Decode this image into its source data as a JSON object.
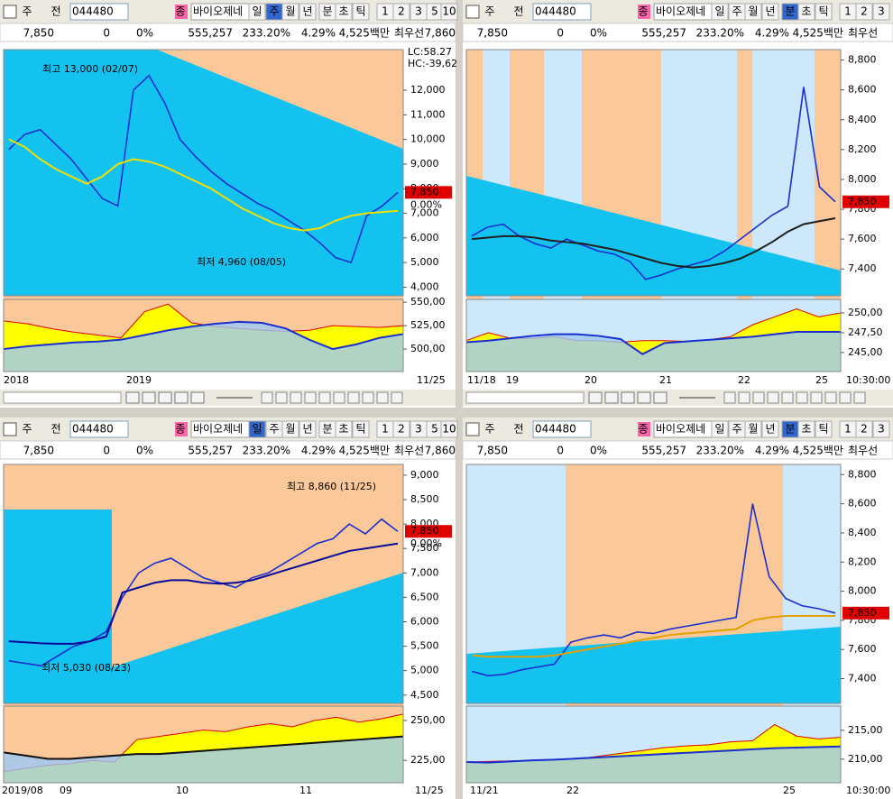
{
  "panels": [
    {
      "toolbar": [
        "주",
        "전",
        "044480",
        "종",
        "바이오제네",
        "일",
        "주",
        "월",
        "년",
        "분",
        "초",
        "틱",
        "1",
        "2",
        "3",
        "5",
        "10"
      ],
      "active": 6,
      "info": [
        "7,850",
        "0",
        "0%",
        "555,257",
        "233.20%",
        "4.29%",
        "4,525백만",
        "최우선",
        "7,860"
      ],
      "main": {
        "type": "line",
        "ylim": [
          3650,
          13650
        ],
        "yticks": [
          {
            "value": 4000,
            "label": "4,000"
          },
          {
            "value": 5000,
            "label": "5,000"
          },
          {
            "value": 6000,
            "label": "6,000"
          },
          {
            "value": 7000,
            "label": "7,000"
          },
          {
            "value": 8000,
            "label": "8,000"
          },
          {
            "value": 9000,
            "label": "9,000"
          },
          {
            "value": 10000,
            "label": "10,000"
          },
          {
            "value": 11000,
            "label": "11,000"
          },
          {
            "value": 12000,
            "label": "12,000"
          }
        ],
        "series": [
          {
            "color": "#1a2fd0",
            "values": [
              9600,
              10200,
              10400,
              9800,
              9200,
              8400,
              7600,
              7300,
              12000,
              12600,
              11500,
              10000,
              9300,
              8700,
              8200,
              7800,
              7400,
              7100,
              6700,
              6300,
              5800,
              5200,
              5000,
              6900,
              7300,
              7850
            ]
          },
          {
            "color": "#f0e000",
            "values": [
              10000,
              9700,
              9200,
              8800,
              8500,
              8200,
              8500,
              9000,
              9200,
              9100,
              8900,
              8600,
              8300,
              8000,
              7600,
              7200,
              6900,
              6600,
              6400,
              6300,
              6400,
              6700,
              6900,
              7000,
              7050,
              7100
            ]
          }
        ],
        "price_label": {
          "value": 7850,
          "label": "7,850"
        },
        "price_change": "0.00%",
        "annotations": [
          "최고 13,000 (02/07)",
          "최저 4,960 (08/05)",
          "LC:58.27",
          "HC:-39,62"
        ]
      },
      "sub": {
        "ylim": [
          476,
          553
        ],
        "yticks": [
          {
            "value": 500,
            "label": "500,00"
          },
          {
            "value": 525,
            "label": "525,00"
          },
          {
            "value": 550,
            "label": "550,00"
          }
        ],
        "series": [
          {
            "style": "area",
            "color": "#ffff00",
            "values": [
              530,
              527,
              522,
              518,
              515,
              512,
              540,
              548,
              528,
              524,
              522,
              520,
              519,
              520,
              525,
              524,
              523,
              525
            ]
          },
          {
            "style": "line",
            "color": "#1a2fd0",
            "values": [
              500,
              503,
              505,
              507,
              508,
              510,
              515,
              520,
              524,
              527,
              529,
              528,
              522,
              510,
              500,
              505,
              512,
              516
            ]
          }
        ]
      },
      "x_labels": [
        "2018",
        "2019",
        "11/25"
      ]
    },
    {
      "toolbar": [
        "주",
        "전",
        "044480",
        "종",
        "바이오제네",
        "일",
        "주",
        "월",
        "년",
        "분",
        "초",
        "틱",
        "1",
        "2",
        "3"
      ],
      "active": 9,
      "info": [
        "7,850",
        "0",
        "0%",
        "555,257",
        "233.20%",
        "4.29%",
        "4,525백만",
        "최우선"
      ],
      "main": {
        "type": "line",
        "ylim": [
          7220,
          8870
        ],
        "yticks": [
          {
            "value": 7400,
            "label": "7,400"
          },
          {
            "value": 7600,
            "label": "7,600"
          },
          {
            "value": 7800,
            "label": "7,800"
          },
          {
            "value": 8000,
            "label": "8,000"
          },
          {
            "value": 8200,
            "label": "8,200"
          },
          {
            "value": 8400,
            "label": "8,400"
          },
          {
            "value": 8600,
            "label": "8,600"
          },
          {
            "value": 8800,
            "label": "8,800"
          }
        ],
        "series": [
          {
            "color": "#1a2fd0",
            "values": [
              7620,
              7680,
              7700,
              7620,
              7570,
              7540,
              7600,
              7560,
              7520,
              7500,
              7450,
              7330,
              7360,
              7400,
              7430,
              7460,
              7520,
              7600,
              7680,
              7760,
              7820,
              8620,
              7950,
              7850
            ]
          },
          {
            "color": "#202020",
            "values": [
              7600,
              7610,
              7620,
              7620,
              7610,
              7590,
              7580,
              7570,
              7550,
              7530,
              7500,
              7470,
              7440,
              7420,
              7410,
              7420,
              7440,
              7470,
              7520,
              7580,
              7650,
              7700,
              7720,
              7740
            ]
          }
        ],
        "price_label": {
          "value": 7850,
          "label": "7,850"
        },
        "annotations": []
      },
      "sub": {
        "ylim": [
          242.6,
          251.7
        ],
        "yticks": [
          {
            "value": 245,
            "label": "245,00"
          },
          {
            "value": 247.5,
            "label": "247,50"
          },
          {
            "value": 250,
            "label": "250,00"
          }
        ],
        "series": [
          {
            "style": "area",
            "color": "#ffff00",
            "values": [
              246.5,
              247.5,
              246.8,
              246.8,
              247,
              246.5,
              246.5,
              246.3,
              246.5,
              246.5,
              246.4,
              246.6,
              247,
              248.5,
              249.5,
              250.5,
              249.5,
              250
            ]
          },
          {
            "style": "line",
            "color": "#1a2fd0",
            "values": [
              246.3,
              246.5,
              246.8,
              247.1,
              247.3,
              247.3,
              247.1,
              246.7,
              244.8,
              246.2,
              246.4,
              246.6,
              246.8,
              247,
              247.3,
              247.6,
              247.6,
              247.6
            ]
          }
        ]
      },
      "x_labels": [
        "11/18",
        "19",
        "20",
        "21",
        "22",
        "25",
        "10:30:00"
      ]
    },
    {
      "toolbar": [
        "주",
        "전",
        "044480",
        "종",
        "바이오제네",
        "일",
        "주",
        "월",
        "년",
        "분",
        "초",
        "틱",
        "1",
        "2",
        "3",
        "5",
        "10"
      ],
      "active": 5,
      "info": [
        "7,850",
        "0",
        "0%",
        "555,257",
        "233.20%",
        "4.29%",
        "4,525백만",
        "최우선",
        "7,860"
      ],
      "main": {
        "type": "line",
        "ylim": [
          4330,
          9220
        ],
        "yticks": [
          {
            "value": 4500,
            "label": "4,500"
          },
          {
            "value": 5000,
            "label": "5,000"
          },
          {
            "value": 5500,
            "label": "5,500"
          },
          {
            "value": 6000,
            "label": "6,000"
          },
          {
            "value": 6500,
            "label": "6,500"
          },
          {
            "value": 7000,
            "label": "7,000"
          },
          {
            "value": 7500,
            "label": "7,500"
          },
          {
            "value": 8000,
            "label": "8,000"
          },
          {
            "value": 8500,
            "label": "8,500"
          },
          {
            "value": 9000,
            "label": "9,000"
          }
        ],
        "series": [
          {
            "color": "#1a2fd0",
            "values": [
              5200,
              5150,
              5100,
              5300,
              5500,
              5600,
              5800,
              6500,
              7000,
              7200,
              7300,
              7100,
              6900,
              6800,
              6700,
              6900,
              7000,
              7200,
              7400,
              7600,
              7700,
              8000,
              7800,
              8100,
              7850
            ]
          },
          {
            "color": "#0a0a9a",
            "values": [
              5600,
              5580,
              5560,
              5550,
              5550,
              5600,
              5700,
              6600,
              6700,
              6800,
              6850,
              6850,
              6800,
              6780,
              6800,
              6850,
              6950,
              7050,
              7150,
              7250,
              7350,
              7450,
              7500,
              7550,
              7600
            ]
          }
        ],
        "price_label": {
          "value": 7850,
          "label": "7,850"
        },
        "price_change": "0.00%",
        "annotations": [
          "최고 8,860 (11/25)",
          "최저 5,030 (08/23)"
        ]
      },
      "sub": {
        "ylim": [
          211,
          259
        ],
        "yticks": [
          {
            "value": 225,
            "label": "225,00"
          },
          {
            "value": 250,
            "label": "250,00"
          }
        ],
        "series": [
          {
            "style": "area",
            "color": "#ffff00",
            "values": [
              218,
              220,
              222,
              223,
              225,
              224,
              238,
              240,
              242,
              244,
              243,
              246,
              248,
              246,
              250,
              252,
              249,
              251,
              254
            ]
          },
          {
            "style": "line",
            "color": "#101010",
            "values": [
              230,
              228,
              226,
              226,
              227,
              228,
              229,
              229,
              230,
              231,
              232,
              233,
              234,
              235,
              236,
              237,
              238,
              239,
              240
            ]
          }
        ]
      },
      "x_labels": [
        "2019/08",
        "09",
        "10",
        "11",
        "11/25"
      ]
    },
    {
      "toolbar": [
        "주",
        "전",
        "044480",
        "종",
        "바이오제네",
        "일",
        "주",
        "월",
        "년",
        "분",
        "초",
        "틱",
        "1",
        "2",
        "3"
      ],
      "active": 9,
      "info": [
        "7,850",
        "0",
        "0%",
        "555,257",
        "233.20%",
        "4.29%",
        "4,525백만",
        "최우선"
      ],
      "main": {
        "type": "line",
        "ylim": [
          7230,
          8870
        ],
        "yticks": [
          {
            "value": 7400,
            "label": "7,400"
          },
          {
            "value": 7600,
            "label": "7,600"
          },
          {
            "value": 7800,
            "label": "7,800"
          },
          {
            "value": 8000,
            "label": "8,000"
          },
          {
            "value": 8200,
            "label": "8,200"
          },
          {
            "value": 8400,
            "label": "8,400"
          },
          {
            "value": 8600,
            "label": "8,600"
          },
          {
            "value": 8800,
            "label": "8,800"
          }
        ],
        "series": [
          {
            "color": "#1a2fd0",
            "values": [
              7450,
              7420,
              7430,
              7460,
              7480,
              7500,
              7650,
              7680,
              7700,
              7680,
              7720,
              7710,
              7740,
              7760,
              7780,
              7800,
              7820,
              8600,
              8100,
              7950,
              7900,
              7880,
              7850
            ]
          },
          {
            "color": "#e0a000",
            "values": [
              7560,
              7550,
              7550,
              7550,
              7550,
              7560,
              7580,
              7600,
              7620,
              7640,
              7660,
              7680,
              7700,
              7710,
              7720,
              7730,
              7740,
              7800,
              7820,
              7830,
              7830,
              7830,
              7830
            ]
          }
        ],
        "price_label": {
          "value": 7850,
          "label": "7,850"
        },
        "annotations": []
      },
      "sub": {
        "ylim": [
          205.9,
          219.2
        ],
        "yticks": [
          {
            "value": 210,
            "label": "210,00"
          },
          {
            "value": 215,
            "label": "215,00"
          }
        ],
        "series": [
          {
            "style": "area",
            "color": "#ffff00",
            "values": [
              209.5,
              209.6,
              209.7,
              209.8,
              209.9,
              210,
              210.5,
              211,
              211.5,
              212,
              212.3,
              212.5,
              213,
              213.2,
              216,
              214,
              213.5,
              213.8
            ]
          },
          {
            "style": "line",
            "color": "#1a2fd0",
            "values": [
              209.5,
              209.4,
              209.6,
              209.8,
              209.9,
              210.1,
              210.3,
              210.5,
              210.7,
              210.9,
              211.1,
              211.3,
              211.5,
              211.7,
              211.9,
              212,
              212.1,
              212.2
            ]
          }
        ]
      },
      "x_labels": [
        "11/21",
        "22",
        "25",
        "10:30:00"
      ]
    }
  ]
}
